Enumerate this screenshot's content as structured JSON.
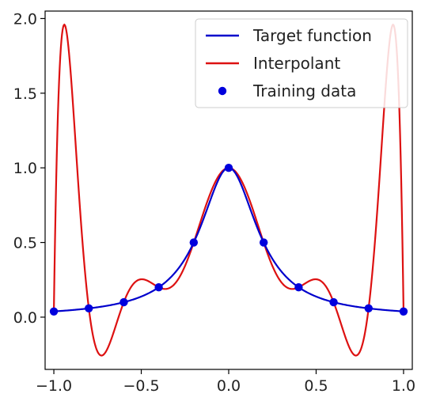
{
  "chart_data": {
    "type": "line",
    "title": "",
    "xlabel": "",
    "ylabel": "",
    "xlim": [
      -1.05,
      1.05
    ],
    "ylim": [
      -0.35,
      2.05
    ],
    "grid": false,
    "legend_position": "top-right",
    "xticks": [
      -1.0,
      -0.5,
      0.0,
      0.5,
      1.0
    ],
    "xtick_labels": [
      "−1.0",
      "−0.5",
      "0.0",
      "0.5",
      "1.0"
    ],
    "yticks": [
      0.0,
      0.5,
      1.0,
      1.5,
      2.0
    ],
    "ytick_labels": [
      "0.0",
      "0.5",
      "1.0",
      "1.5",
      "2.0"
    ],
    "series": [
      {
        "name": "Target function",
        "kind": "line",
        "color": "#0000cc",
        "function": "1/(1+25x^2)",
        "x_range": [
          -1.0,
          1.0
        ]
      },
      {
        "name": "Interpolant",
        "kind": "line",
        "color": "#dd1111",
        "description_of_values": "degree-10 polynomial through the training data",
        "x_range": [
          -1.0,
          1.0
        ],
        "approx_extrema": [
          [
            -0.96,
            1.96
          ],
          [
            -0.74,
            -0.25
          ],
          [
            -0.51,
            0.25
          ],
          [
            0.0,
            1.0
          ],
          [
            0.51,
            0.25
          ],
          [
            0.74,
            -0.25
          ],
          [
            0.96,
            1.96
          ]
        ]
      },
      {
        "name": "Training data",
        "kind": "scatter",
        "color": "#0000dd",
        "x": [
          -1.0,
          -0.8,
          -0.6,
          -0.4,
          -0.2,
          0.0,
          0.2,
          0.4,
          0.6,
          0.8,
          1.0
        ],
        "y": [
          0.038,
          0.059,
          0.1,
          0.2,
          0.5,
          1.0,
          0.5,
          0.2,
          0.1,
          0.059,
          0.038
        ]
      }
    ]
  }
}
